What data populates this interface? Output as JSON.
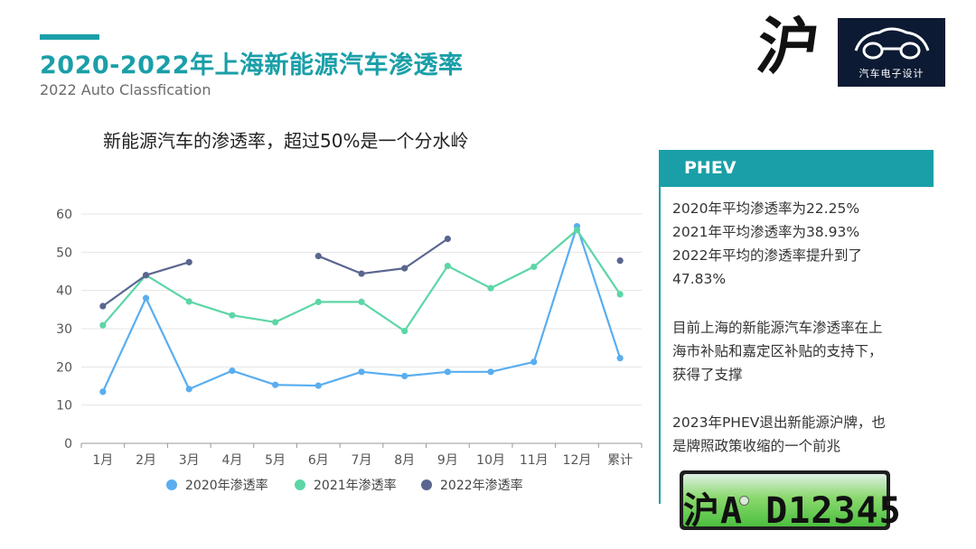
{
  "header": {
    "title": "2020-2022年上海新能源汽车渗透率",
    "subtitle": "2022 Auto Classfication"
  },
  "brand": {
    "calligraphy": "沪",
    "logo_text": "汽车电子设计",
    "logo_icon": "car-outline-icon"
  },
  "chart_heading": "新能源汽车的渗透率，超过50%是一个分水岭",
  "side_panel": {
    "header": "PHEV",
    "stats": [
      "2020年平均渗透率为22.25%",
      "2021年平均渗透率为38.93%",
      "2022年平均的渗透率提升到了",
      "47.83%"
    ],
    "para1": [
      "目前上海的新能源汽车渗透率在上",
      "海市补贴和嘉定区补贴的支持下，",
      "获得了支撑"
    ],
    "para2": [
      "2023年PHEV退出新能源沪牌，也",
      "是牌照政策收缩的一个前兆"
    ],
    "plate": "沪A D12345"
  },
  "colors": {
    "accent": "#1a9fa8",
    "series_2020": "#5aaef0",
    "series_2021": "#5dd6a6",
    "series_2022": "#5b6690"
  },
  "chart_data": {
    "type": "line",
    "categories": [
      "1月",
      "2月",
      "3月",
      "4月",
      "5月",
      "6月",
      "7月",
      "8月",
      "9月",
      "10月",
      "11月",
      "12月",
      "累计"
    ],
    "ylim": [
      0,
      60
    ],
    "yticks": [
      0,
      10,
      20,
      30,
      40,
      50,
      60
    ],
    "grid": true,
    "legend_position": "bottom",
    "series": [
      {
        "name": "2020年渗透率",
        "values": [
          13.5,
          38,
          14.2,
          19,
          15.3,
          15.1,
          18.7,
          17.6,
          18.7,
          18.7,
          21.3,
          56.8,
          22.3
        ]
      },
      {
        "name": "2021年渗透率",
        "values": [
          30.9,
          44,
          37.1,
          33.5,
          31.7,
          37,
          37,
          29.4,
          46.4,
          40.6,
          46.2,
          55.8,
          39
        ]
      },
      {
        "name": "2022年渗透率",
        "values": [
          35.9,
          44,
          47.4,
          null,
          null,
          49,
          44.4,
          45.8,
          53.5,
          null,
          null,
          null,
          47.8
        ]
      }
    ]
  }
}
